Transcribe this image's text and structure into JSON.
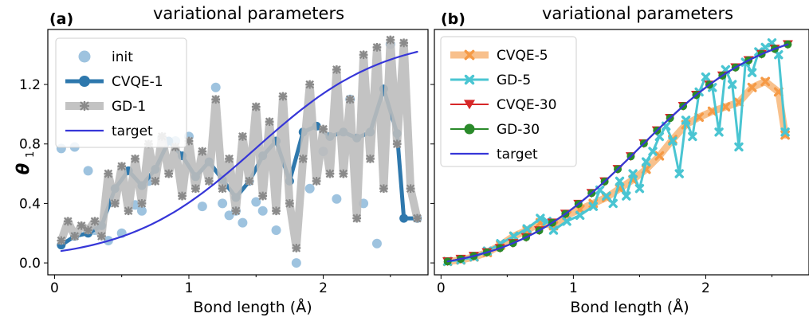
{
  "chart_data": [
    {
      "type": "line",
      "panel_label": "(a)",
      "title": "variational parameters",
      "xlabel": "Bond length (Å)",
      "ylabel": "θ",
      "ylabel_sub": "1",
      "xlim": [
        -0.05,
        2.78
      ],
      "ylim": [
        -0.08,
        1.57
      ],
      "xticks": [
        0,
        1,
        2
      ],
      "xtick_labels": [
        "0",
        "1",
        "2"
      ],
      "yticks": [
        0.0,
        0.4,
        0.8,
        1.2
      ],
      "ytick_labels": [
        "0.0",
        "0.4",
        "0.8",
        "1.2"
      ],
      "legend_position": "upper-left",
      "series": [
        {
          "name": "init",
          "style": "points",
          "color": "#9ec3df",
          "x": [
            0.05,
            0.15,
            0.25,
            0.3,
            0.4,
            0.5,
            0.6,
            0.65,
            0.7,
            0.8,
            0.9,
            1.0,
            1.1,
            1.2,
            1.25,
            1.3,
            1.35,
            1.4,
            1.5,
            1.55,
            1.65,
            1.8,
            1.9,
            2.0,
            2.1,
            2.2,
            2.3,
            2.4,
            2.5
          ],
          "y": [
            0.77,
            0.78,
            0.62,
            0.22,
            0.15,
            0.2,
            0.39,
            0.35,
            0.55,
            0.84,
            0.82,
            0.85,
            0.38,
            1.18,
            0.4,
            0.32,
            0.35,
            0.27,
            0.41,
            0.35,
            0.22,
            0.0,
            0.5,
            0.75,
            0.43,
            1.1,
            0.4,
            0.13,
            1.47
          ]
        },
        {
          "name": "CVQE-1",
          "style": "line-markers",
          "color": "#2e78ad",
          "x": [
            0.05,
            0.15,
            0.25,
            0.35,
            0.45,
            0.55,
            0.65,
            0.75,
            0.85,
            0.95,
            1.05,
            1.15,
            1.25,
            1.35,
            1.45,
            1.55,
            1.65,
            1.75,
            1.85,
            1.95,
            2.05,
            2.15,
            2.25,
            2.35,
            2.45,
            2.55,
            2.6,
            2.7
          ],
          "y": [
            0.12,
            0.18,
            0.2,
            0.25,
            0.5,
            0.62,
            0.52,
            0.63,
            0.82,
            0.72,
            0.58,
            0.68,
            0.56,
            0.44,
            0.55,
            0.72,
            0.82,
            0.55,
            0.88,
            0.92,
            0.85,
            0.88,
            0.84,
            0.88,
            1.17,
            0.87,
            0.3,
            0.3
          ]
        },
        {
          "name": "GD-1",
          "style": "line-markers",
          "color": "#bdbdbd",
          "marker_color": "#8a8a8a",
          "x": [
            0.05,
            0.1,
            0.15,
            0.2,
            0.25,
            0.3,
            0.35,
            0.4,
            0.45,
            0.5,
            0.55,
            0.6,
            0.65,
            0.7,
            0.75,
            0.8,
            0.85,
            0.9,
            0.95,
            1.0,
            1.05,
            1.1,
            1.15,
            1.2,
            1.25,
            1.3,
            1.35,
            1.4,
            1.45,
            1.5,
            1.55,
            1.6,
            1.65,
            1.7,
            1.75,
            1.8,
            1.85,
            1.9,
            1.95,
            2.0,
            2.05,
            2.1,
            2.15,
            2.2,
            2.25,
            2.3,
            2.35,
            2.4,
            2.45,
            2.5,
            2.55,
            2.6,
            2.65,
            2.7
          ],
          "y": [
            0.15,
            0.28,
            0.18,
            0.25,
            0.22,
            0.28,
            0.18,
            0.6,
            0.4,
            0.65,
            0.35,
            0.7,
            0.4,
            0.8,
            0.55,
            0.85,
            0.6,
            0.78,
            0.45,
            0.82,
            0.5,
            0.75,
            0.55,
            1.1,
            0.5,
            0.7,
            0.35,
            0.85,
            0.55,
            1.05,
            0.45,
            0.95,
            0.35,
            1.12,
            0.4,
            0.1,
            0.7,
            1.2,
            0.55,
            0.9,
            0.6,
            1.3,
            0.6,
            1.1,
            0.3,
            1.4,
            0.7,
            1.45,
            0.5,
            1.5,
            0.8,
            1.48,
            0.5,
            0.3
          ]
        },
        {
          "name": "target",
          "style": "line",
          "color": "#3636d8",
          "function": "sigmoid",
          "x_range": [
            0.05,
            2.7
          ],
          "y": "0.08 + 1.34 * (1 / (1 + exp(-2.1*(x-1.5))) - s0) / (s1 - s0)"
        }
      ]
    },
    {
      "type": "line",
      "panel_label": "(b)",
      "title": "variational parameters",
      "xlabel": "Bond length (Å)",
      "xlim": [
        -0.05,
        2.78
      ],
      "ylim": [
        -0.08,
        1.57
      ],
      "xticks": [
        0,
        1,
        2
      ],
      "xtick_labels": [
        "0",
        "1",
        "2"
      ],
      "yticks": [
        0.0,
        0.4,
        0.8,
        1.2
      ],
      "legend_position": "upper-left",
      "series": [
        {
          "name": "CVQE-5",
          "style": "line-markers",
          "color": "#f7b678",
          "marker_color": "#f59a46",
          "x": [
            0.05,
            0.15,
            0.25,
            0.35,
            0.45,
            0.55,
            0.65,
            0.75,
            0.85,
            0.95,
            1.05,
            1.15,
            1.25,
            1.35,
            1.45,
            1.55,
            1.65,
            1.75,
            1.85,
            1.95,
            2.05,
            2.15,
            2.25,
            2.35,
            2.45,
            2.55,
            2.6
          ],
          "y": [
            0.01,
            0.02,
            0.04,
            0.07,
            0.12,
            0.18,
            0.22,
            0.27,
            0.25,
            0.32,
            0.36,
            0.4,
            0.44,
            0.5,
            0.56,
            0.63,
            0.72,
            0.83,
            0.93,
            0.98,
            1.02,
            1.05,
            1.08,
            1.18,
            1.22,
            1.15,
            0.86
          ]
        },
        {
          "name": "GD-5",
          "style": "line-markers",
          "color": "#4ac5d2",
          "x": [
            0.05,
            0.15,
            0.25,
            0.35,
            0.45,
            0.55,
            0.65,
            0.75,
            0.8,
            0.85,
            0.95,
            1.05,
            1.15,
            1.2,
            1.25,
            1.3,
            1.35,
            1.4,
            1.45,
            1.5,
            1.55,
            1.6,
            1.65,
            1.7,
            1.75,
            1.8,
            1.85,
            1.9,
            1.95,
            2.0,
            2.05,
            2.1,
            2.15,
            2.2,
            2.25,
            2.3,
            2.35,
            2.4,
            2.45,
            2.5,
            2.55,
            2.6
          ],
          "y": [
            0.01,
            0.02,
            0.04,
            0.08,
            0.13,
            0.18,
            0.23,
            0.3,
            0.28,
            0.22,
            0.28,
            0.32,
            0.38,
            0.49,
            0.45,
            0.4,
            0.55,
            0.45,
            0.6,
            0.5,
            0.68,
            0.75,
            0.85,
            0.92,
            0.82,
            0.6,
            0.96,
            0.85,
            1.15,
            1.25,
            1.18,
            0.88,
            1.3,
            1.2,
            0.78,
            1.35,
            1.28,
            1.42,
            1.45,
            1.48,
            1.4,
            0.88
          ]
        },
        {
          "name": "CVQE-30",
          "style": "line-markers",
          "marker": "triangle-down",
          "color": "#d62728",
          "function": "sigmoid",
          "x_range": [
            0.05,
            2.62
          ],
          "y_range": [
            0.01,
            1.47
          ]
        },
        {
          "name": "GD-30",
          "style": "line-markers",
          "marker": "circle",
          "color": "#2a8a2a",
          "function": "sigmoid",
          "x_range": [
            0.05,
            2.62
          ],
          "y_range": [
            0.01,
            1.47
          ]
        },
        {
          "name": "target",
          "style": "line",
          "color": "#3636d8",
          "function": "sigmoid",
          "x_range": [
            0.05,
            2.62
          ],
          "y_range": [
            0.01,
            1.47
          ]
        }
      ]
    }
  ]
}
